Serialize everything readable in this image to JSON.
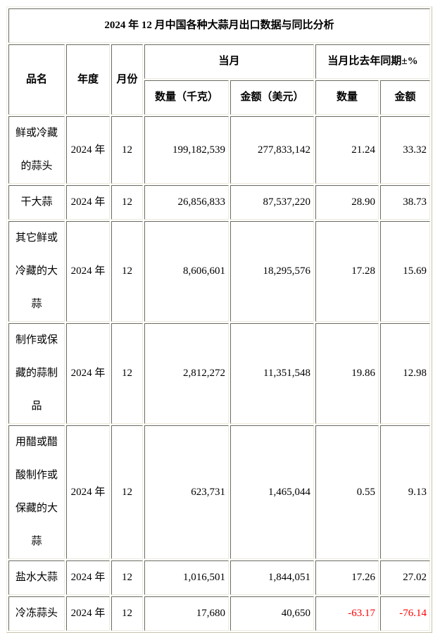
{
  "table": {
    "title": "2024 年 12 月中国各种大蒜月出口数据与同比分析",
    "headers": {
      "product": "品名",
      "year": "年度",
      "month": "月份",
      "current_month_group": "当月",
      "yoy_group": "当月比去年同期±%",
      "quantity_kg": "数量（千克）",
      "amount_usd": "金额（美元）",
      "yoy_quantity": "数量",
      "yoy_amount": "金额"
    },
    "rows": [
      {
        "product": "鲜或冷藏的蒜头",
        "year": "2024 年",
        "month": "12",
        "quantity": "199,182,539",
        "amount": "277,833,142",
        "yoy_quantity": "21.24",
        "yoy_amount": "33.32"
      },
      {
        "product": "干大蒜",
        "year": "2024 年",
        "month": "12",
        "quantity": "26,856,833",
        "amount": "87,537,220",
        "yoy_quantity": "28.90",
        "yoy_amount": "38.73"
      },
      {
        "product": "其它鲜或冷藏的大蒜",
        "year": "2024 年",
        "month": "12",
        "quantity": "8,606,601",
        "amount": "18,295,576",
        "yoy_quantity": "17.28",
        "yoy_amount": "15.69"
      },
      {
        "product": "制作或保藏的蒜制品",
        "year": "2024 年",
        "month": "12",
        "quantity": "2,812,272",
        "amount": "11,351,548",
        "yoy_quantity": "19.86",
        "yoy_amount": "12.98"
      },
      {
        "product": "用醋或醋酸制作或保藏的大蒜",
        "year": "2024 年",
        "month": "12",
        "quantity": "623,731",
        "amount": "1,465,044",
        "yoy_quantity": "0.55",
        "yoy_amount": "9.13"
      },
      {
        "product": "盐水大蒜",
        "year": "2024 年",
        "month": "12",
        "quantity": "1,016,501",
        "amount": "1,844,051",
        "yoy_quantity": "17.26",
        "yoy_amount": "27.02"
      },
      {
        "product": "冷冻蒜头",
        "year": "2024 年",
        "month": "12",
        "quantity": "17,680",
        "amount": "40,650",
        "yoy_quantity": "-63.17",
        "yoy_amount": "-76.14"
      }
    ],
    "colors": {
      "text": "#000000",
      "negative": "#ff0000",
      "border_dark": "#6b6b62",
      "border_light": "#eeebdc"
    }
  }
}
